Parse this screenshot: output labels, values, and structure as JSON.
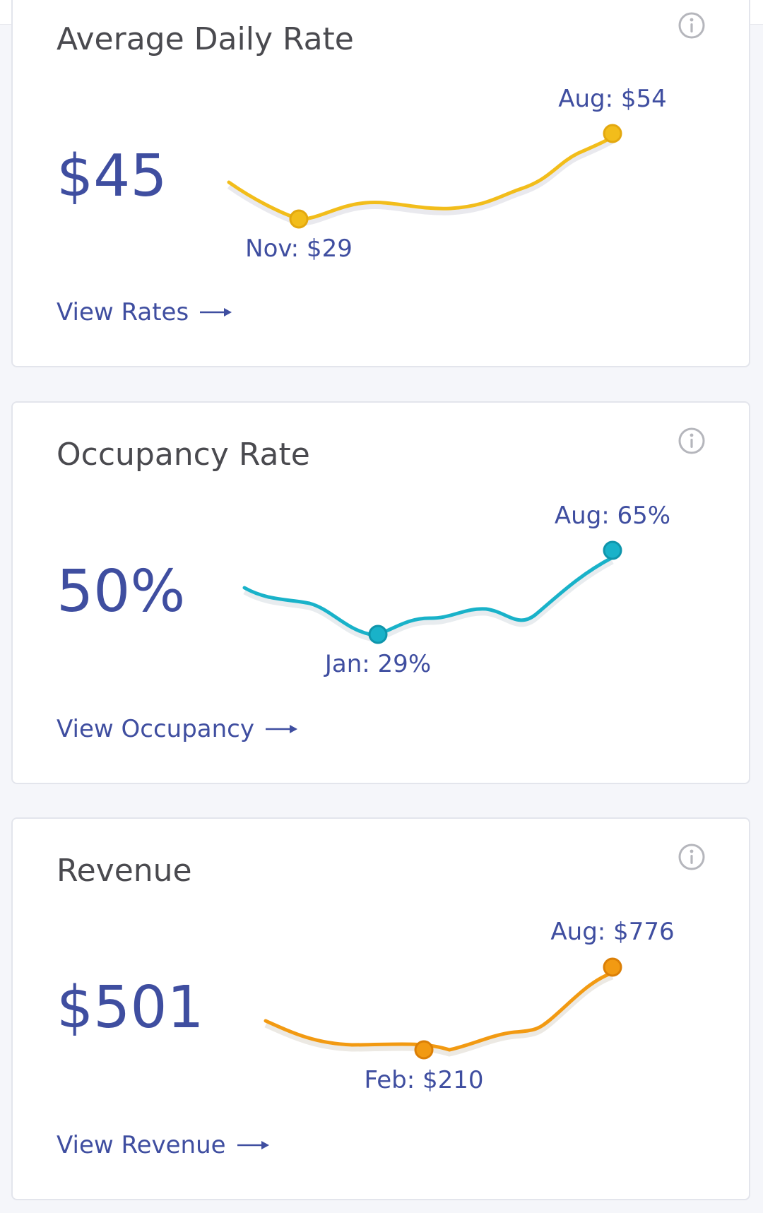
{
  "cards": [
    {
      "title": "Average Daily Rate",
      "value": "$45",
      "color": "#f2bd1b",
      "high_label": "Aug: $54",
      "low_label": "Nov: $29",
      "link_label": "View Rates",
      "info_icon": "info-icon",
      "arrow_icon": "arrow-right-icon",
      "chart_data": {
        "type": "line",
        "points": [
          {
            "label": "Nov",
            "value": 29
          },
          {
            "label": "Aug",
            "value": 54
          }
        ]
      }
    },
    {
      "title": "Occupancy Rate",
      "value": "50%",
      "color": "#19b2c9",
      "high_label": "Aug: 65%",
      "low_label": "Jan: 29%",
      "link_label": "View Occupancy",
      "info_icon": "info-icon",
      "arrow_icon": "arrow-right-icon",
      "chart_data": {
        "type": "line",
        "points": [
          {
            "label": "Jan",
            "value": 29
          },
          {
            "label": "Aug",
            "value": 65
          }
        ]
      }
    },
    {
      "title": "Revenue",
      "value": "$501",
      "color": "#f29a12",
      "high_label": "Aug: $776",
      "low_label": "Feb: $210",
      "link_label": "View Revenue",
      "info_icon": "info-icon",
      "arrow_icon": "arrow-right-icon",
      "chart_data": {
        "type": "line",
        "points": [
          {
            "label": "Feb",
            "value": 210
          },
          {
            "label": "Aug",
            "value": 776
          }
        ]
      }
    }
  ]
}
